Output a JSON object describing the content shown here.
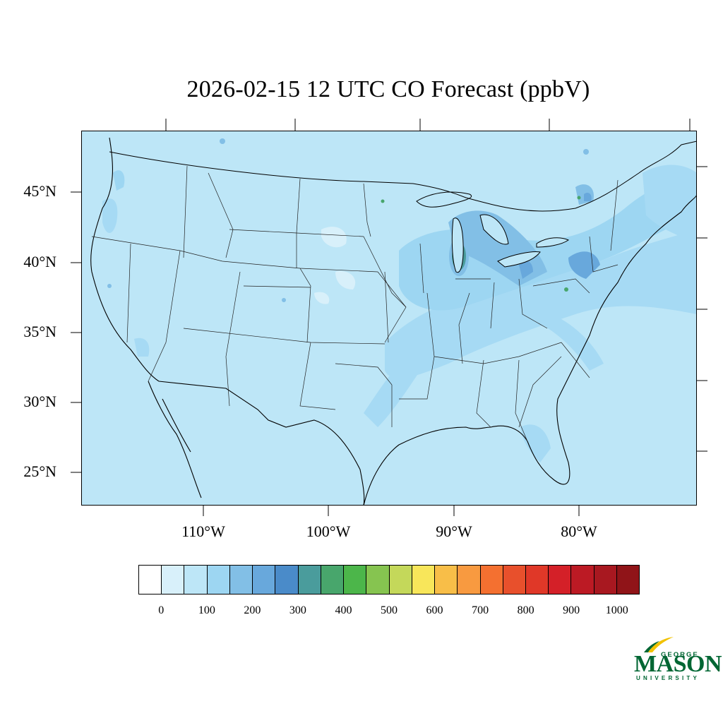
{
  "title": "2026-02-15 12 UTC CO Forecast (ppbV)",
  "map": {
    "background_color": "#bde6f7",
    "lat_labels": [
      "45°N",
      "40°N",
      "35°N",
      "30°N",
      "25°N"
    ],
    "lon_labels": [
      "110°W",
      "100°W",
      "90°W",
      "80°W"
    ]
  },
  "colorbar": {
    "colors": [
      "#ffffff",
      "#d8f0fa",
      "#bde6f7",
      "#9dd6f2",
      "#82bfe6",
      "#68a8dc",
      "#4a8bc9",
      "#4a9c9c",
      "#48a66c",
      "#4cb64a",
      "#86c450",
      "#c4d85a",
      "#f8e65a",
      "#f8be48",
      "#f89a40",
      "#f47030",
      "#e8502c",
      "#e03828",
      "#d42028",
      "#bc1a24",
      "#a81820",
      "#901418"
    ],
    "labels": [
      "0",
      "100",
      "200",
      "300",
      "400",
      "500",
      "600",
      "700",
      "800",
      "900",
      "1000"
    ]
  },
  "logo": {
    "line1": "GEORGE",
    "line2": "MASON",
    "line3": "UNIVERSITY"
  }
}
